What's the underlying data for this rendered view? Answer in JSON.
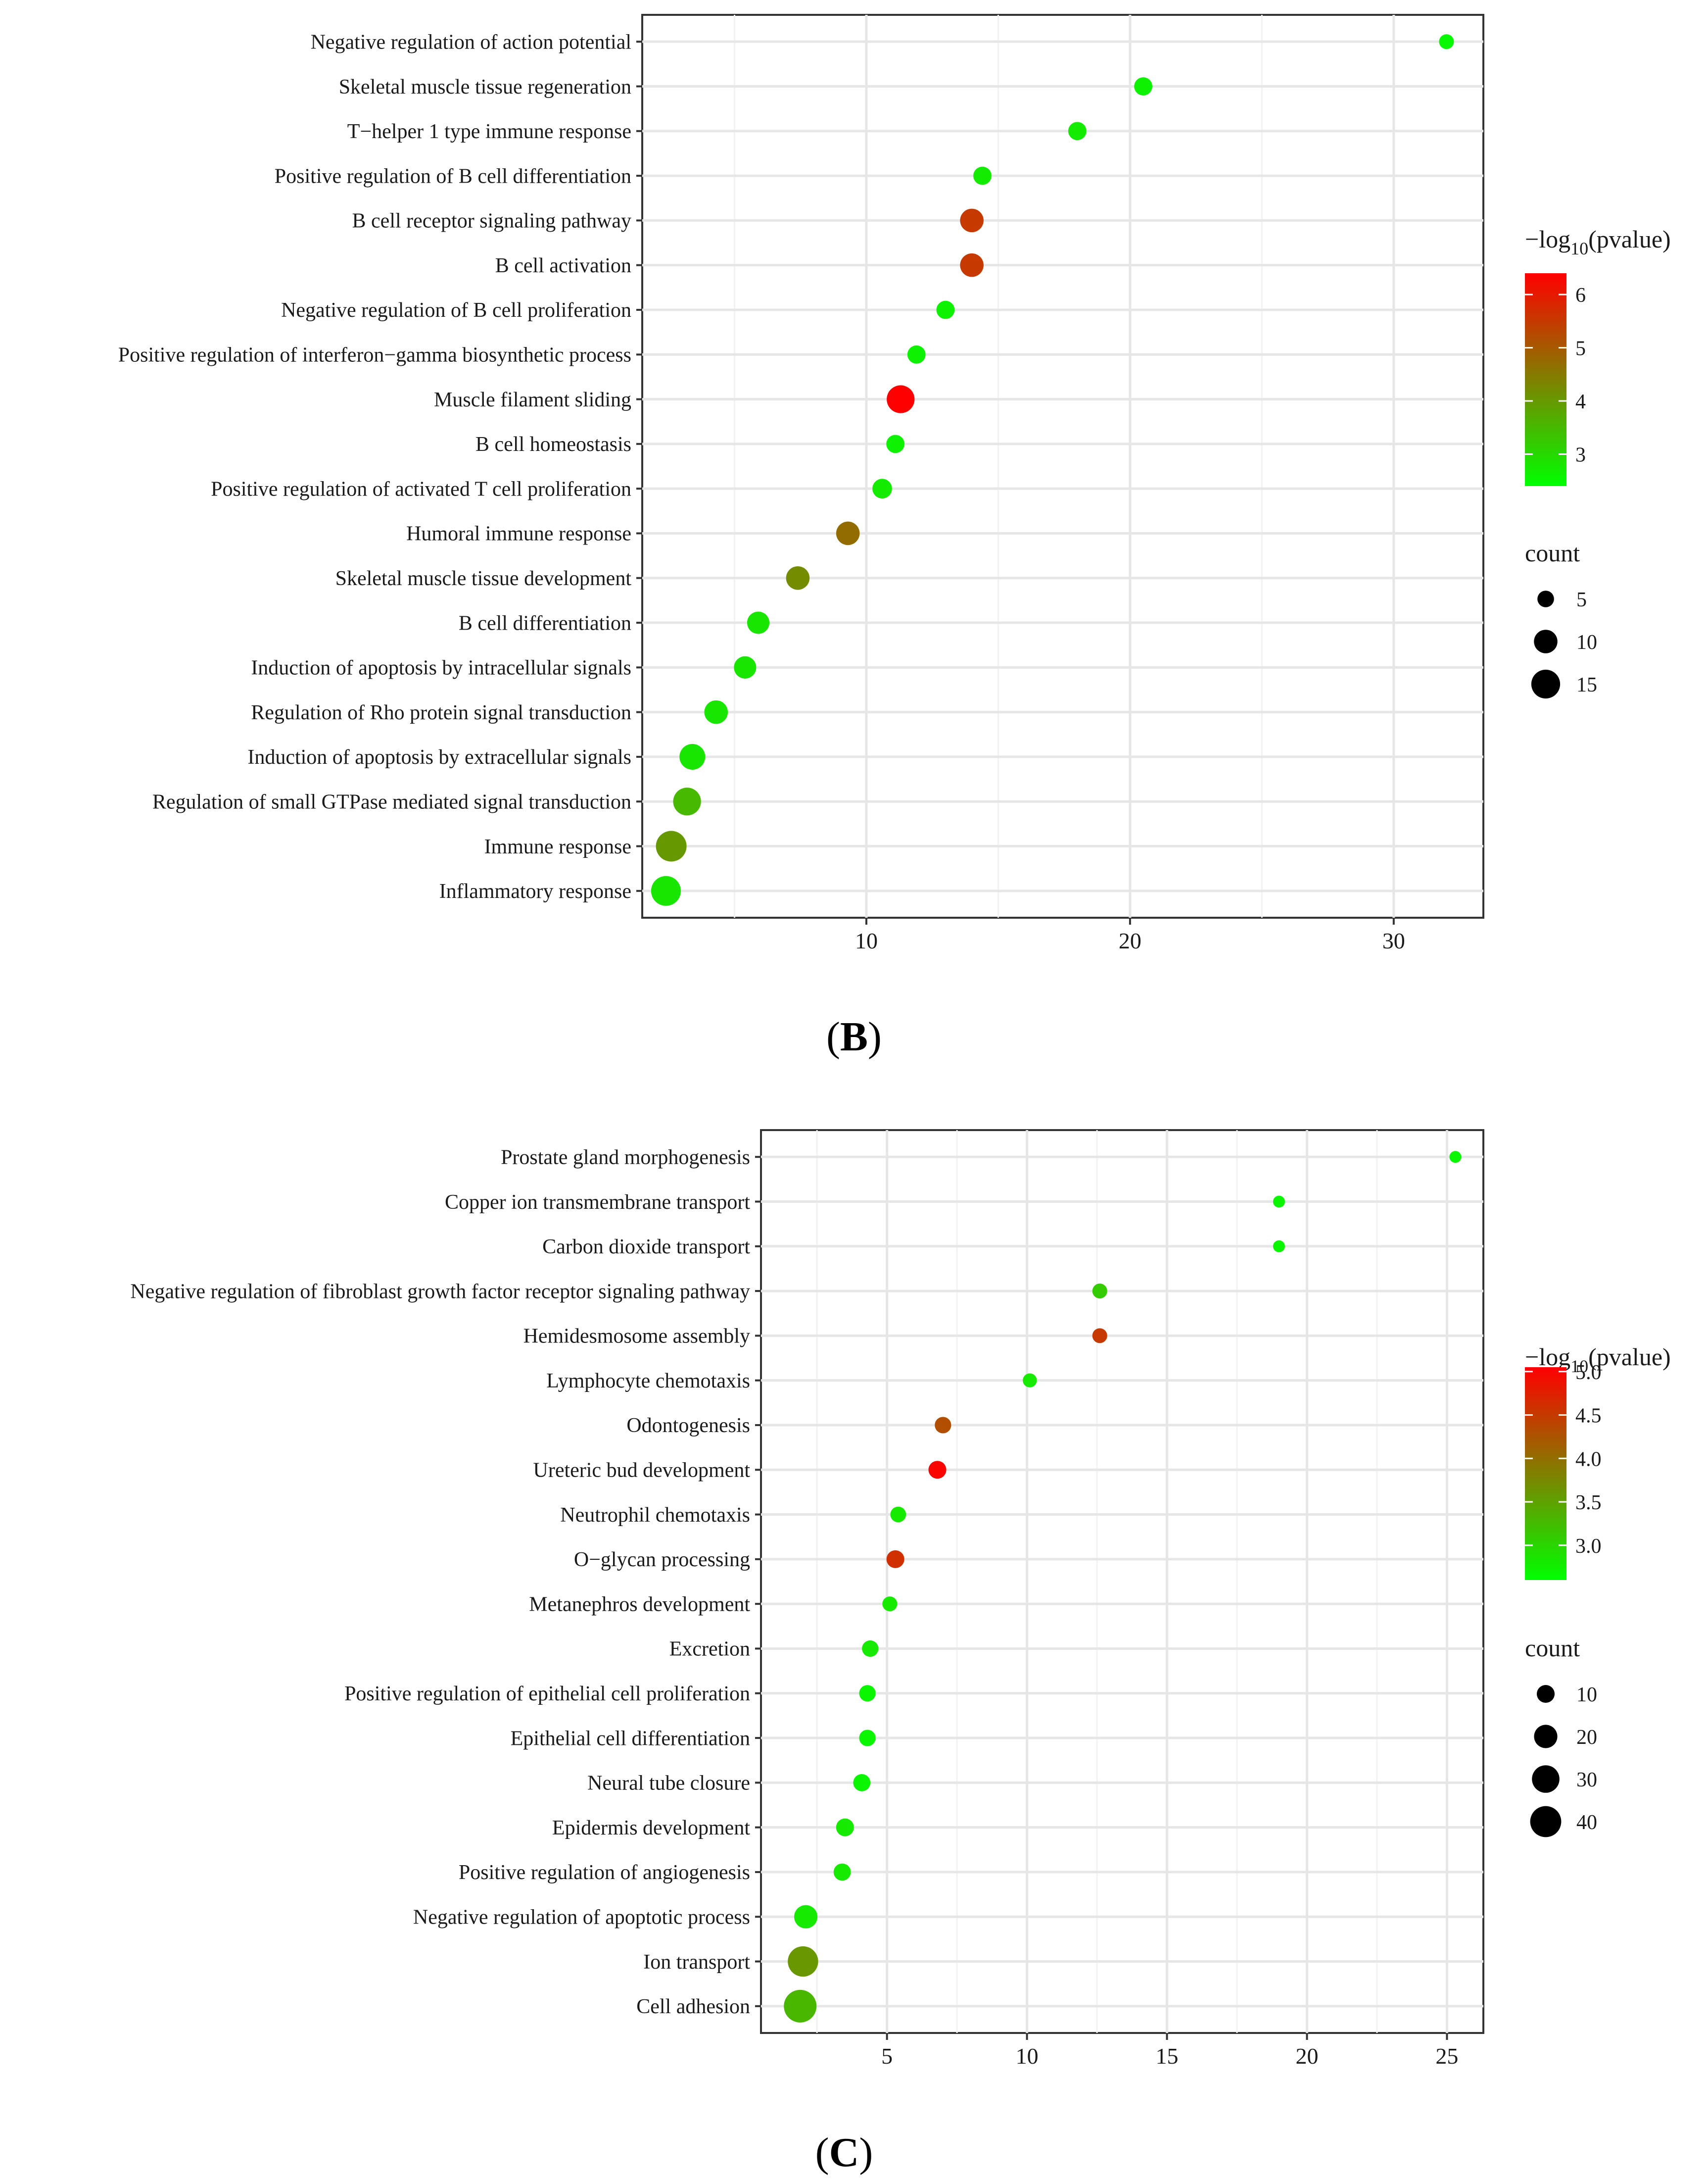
{
  "chart_data": [
    {
      "type": "scatter",
      "panel_label_open": "(",
      "panel_label_letter": "B",
      "panel_label_close": ")",
      "xlabel": "",
      "ylabel": "",
      "xlim": [
        1.5,
        33.4
      ],
      "xticks": [
        10,
        20,
        30
      ],
      "grid": true,
      "legend_position": "right",
      "color_legend": {
        "title_prefix": "−log",
        "title_sub": "10",
        "title_suffix": "(pvalue)",
        "range": [
          2.4,
          6.4
        ],
        "ticks": [
          3,
          4,
          5,
          6
        ],
        "low_color": "#00ff00",
        "high_color": "#ff0000"
      },
      "size_legend": {
        "title": "count",
        "values": [
          5,
          10,
          15
        ],
        "range": [
          4,
          17
        ]
      },
      "points": [
        {
          "term": "Negative regulation of action potential",
          "x": 32.0,
          "neglog10p": 2.5,
          "count": 4
        },
        {
          "term": "Skeletal muscle tissue regeneration",
          "x": 20.5,
          "neglog10p": 2.6,
          "count": 6
        },
        {
          "term": "T−helper 1 type immune response",
          "x": 18.0,
          "neglog10p": 2.7,
          "count": 6
        },
        {
          "term": "Positive regulation of B cell differentiation",
          "x": 14.4,
          "neglog10p": 2.7,
          "count": 6
        },
        {
          "term": "B cell receptor signaling pathway",
          "x": 14.0,
          "neglog10p": 5.5,
          "count": 10
        },
        {
          "term": "B cell activation",
          "x": 14.0,
          "neglog10p": 5.5,
          "count": 10
        },
        {
          "term": "Negative regulation of B cell proliferation",
          "x": 13.0,
          "neglog10p": 2.6,
          "count": 6
        },
        {
          "term": "Positive regulation of interferon−gamma biosynthetic process",
          "x": 11.9,
          "neglog10p": 2.6,
          "count": 6
        },
        {
          "term": "Muscle filament sliding",
          "x": 11.3,
          "neglog10p": 6.4,
          "count": 14
        },
        {
          "term": "B cell homeostasis",
          "x": 11.1,
          "neglog10p": 2.6,
          "count": 6
        },
        {
          "term": "Positive regulation of activated T cell proliferation",
          "x": 10.6,
          "neglog10p": 2.7,
          "count": 7
        },
        {
          "term": "Humoral immune response",
          "x": 9.3,
          "neglog10p": 4.7,
          "count": 10
        },
        {
          "term": "Skeletal muscle tissue development",
          "x": 7.4,
          "neglog10p": 4.2,
          "count": 10
        },
        {
          "term": "B cell differentiation",
          "x": 5.9,
          "neglog10p": 2.8,
          "count": 9
        },
        {
          "term": "Induction of apoptosis by intracellular signals",
          "x": 5.4,
          "neglog10p": 2.8,
          "count": 9
        },
        {
          "term": "Regulation of Rho protein signal transduction",
          "x": 4.3,
          "neglog10p": 2.8,
          "count": 10
        },
        {
          "term": "Induction of apoptosis by extracellular signals",
          "x": 3.4,
          "neglog10p": 2.8,
          "count": 12
        },
        {
          "term": "Regulation of small GTPase mediated signal transduction",
          "x": 3.2,
          "neglog10p": 3.5,
          "count": 14
        },
        {
          "term": "Immune response",
          "x": 2.6,
          "neglog10p": 4.0,
          "count": 17
        },
        {
          "term": "Inflammatory response",
          "x": 2.4,
          "neglog10p": 2.8,
          "count": 16
        }
      ]
    },
    {
      "type": "scatter",
      "panel_label_open": "(",
      "panel_label_letter": "C",
      "panel_label_close": ")",
      "xlabel": "",
      "ylabel": "",
      "xlim": [
        0.5,
        26.3
      ],
      "xticks": [
        5,
        10,
        15,
        20,
        25
      ],
      "grid": true,
      "legend_position": "right",
      "color_legend": {
        "title_prefix": "−log",
        "title_sub": "10",
        "title_suffix": "(pvalue)",
        "range": [
          2.6,
          5.05
        ],
        "ticks": [
          3.0,
          3.5,
          4.0,
          4.5,
          5.0
        ],
        "tick_labels": [
          "3.0",
          "3.5",
          "4.0",
          "4.5",
          "5.0"
        ],
        "low_color": "#00ff00",
        "high_color": "#ff0000"
      },
      "size_legend": {
        "title": "count",
        "values": [
          10,
          20,
          30,
          40
        ],
        "range": [
          3,
          45
        ]
      },
      "points": [
        {
          "term": "Prostate gland morphogenesis",
          "x": 25.3,
          "neglog10p": 2.7,
          "count": 3
        },
        {
          "term": "Copper ion transmembrane transport",
          "x": 19.0,
          "neglog10p": 2.7,
          "count": 3
        },
        {
          "term": "Carbon dioxide transport",
          "x": 19.0,
          "neglog10p": 2.7,
          "count": 3
        },
        {
          "term": "Negative regulation of fibroblast growth factor receptor signaling pathway",
          "x": 12.6,
          "neglog10p": 3.1,
          "count": 6
        },
        {
          "term": "Hemidesmosome assembly",
          "x": 12.6,
          "neglog10p": 4.5,
          "count": 6
        },
        {
          "term": "Lymphocyte chemotaxis",
          "x": 10.1,
          "neglog10p": 2.8,
          "count": 5
        },
        {
          "term": "Odontogenesis",
          "x": 7.0,
          "neglog10p": 4.3,
          "count": 8
        },
        {
          "term": "Ureteric bud development",
          "x": 6.8,
          "neglog10p": 5.0,
          "count": 10
        },
        {
          "term": "Neutrophil chemotaxis",
          "x": 5.4,
          "neglog10p": 2.8,
          "count": 7
        },
        {
          "term": "O−glycan processing",
          "x": 5.3,
          "neglog10p": 4.6,
          "count": 10
        },
        {
          "term": "Metanephros development",
          "x": 5.1,
          "neglog10p": 2.8,
          "count": 6
        },
        {
          "term": "Excretion",
          "x": 4.4,
          "neglog10p": 2.8,
          "count": 8
        },
        {
          "term": "Positive regulation of epithelial cell proliferation",
          "x": 4.3,
          "neglog10p": 2.7,
          "count": 8
        },
        {
          "term": "Epithelial cell differentiation",
          "x": 4.3,
          "neglog10p": 2.7,
          "count": 8
        },
        {
          "term": "Neural tube closure",
          "x": 4.1,
          "neglog10p": 2.7,
          "count": 9
        },
        {
          "term": "Epidermis development",
          "x": 3.5,
          "neglog10p": 2.8,
          "count": 10
        },
        {
          "term": "Positive regulation of angiogenesis",
          "x": 3.4,
          "neglog10p": 2.8,
          "count": 9
        },
        {
          "term": "Negative regulation of apoptotic process",
          "x": 2.1,
          "neglog10p": 2.8,
          "count": 20
        },
        {
          "term": "Ion transport",
          "x": 2.0,
          "neglog10p": 3.6,
          "count": 38
        },
        {
          "term": "Cell adhesion",
          "x": 1.9,
          "neglog10p": 3.3,
          "count": 45
        }
      ]
    }
  ]
}
